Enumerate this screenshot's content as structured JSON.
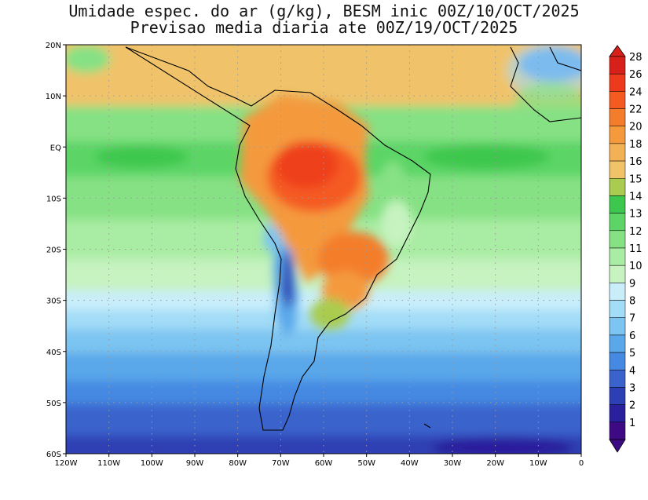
{
  "title_line1": "Umidade espec. do ar (g/kg), BESM inic 00Z/10/OCT/2025",
  "title_line2": "Previsao media diaria ate 00Z/19/OCT/2025",
  "map": {
    "lon_range": [
      -120,
      0
    ],
    "lat_range": [
      -60,
      20
    ],
    "lat_ticks": [
      {
        "value": 20,
        "label": "20N"
      },
      {
        "value": 10,
        "label": "10N"
      },
      {
        "value": 0,
        "label": "EQ"
      },
      {
        "value": -10,
        "label": "10S"
      },
      {
        "value": -20,
        "label": "20S"
      },
      {
        "value": -30,
        "label": "30S"
      },
      {
        "value": -40,
        "label": "40S"
      },
      {
        "value": -50,
        "label": "50S"
      },
      {
        "value": -60,
        "label": "60S"
      }
    ],
    "lon_ticks": [
      {
        "value": -120,
        "label": "120W"
      },
      {
        "value": -110,
        "label": "110W"
      },
      {
        "value": -100,
        "label": "100W"
      },
      {
        "value": -90,
        "label": "90W"
      },
      {
        "value": -80,
        "label": "80W"
      },
      {
        "value": -70,
        "label": "70W"
      },
      {
        "value": -60,
        "label": "60W"
      },
      {
        "value": -50,
        "label": "50W"
      },
      {
        "value": -40,
        "label": "40W"
      },
      {
        "value": -30,
        "label": "30W"
      },
      {
        "value": -20,
        "label": "20W"
      },
      {
        "value": -10,
        "label": "10W"
      },
      {
        "value": 0,
        "label": "0"
      }
    ]
  },
  "colorbar": {
    "levels": [
      {
        "label": "28",
        "color": "#d8201a"
      },
      {
        "label": "26",
        "color": "#ee3a1c"
      },
      {
        "label": "24",
        "color": "#f55a20"
      },
      {
        "label": "22",
        "color": "#f47d2c"
      },
      {
        "label": "20",
        "color": "#f49a3c"
      },
      {
        "label": "18",
        "color": "#f3b155"
      },
      {
        "label": "16",
        "color": "#f0c36a"
      },
      {
        "label": "15",
        "color": "#a9cc50"
      },
      {
        "label": "14",
        "color": "#3ec74e"
      },
      {
        "label": "13",
        "color": "#5cd566"
      },
      {
        "label": "12",
        "color": "#86e184"
      },
      {
        "label": "11",
        "color": "#a9eca3"
      },
      {
        "label": "10",
        "color": "#c6f3c0"
      },
      {
        "label": "9",
        "color": "#c9eefa"
      },
      {
        "label": "8",
        "color": "#a2dcf7"
      },
      {
        "label": "7",
        "color": "#7cc4f1"
      },
      {
        "label": "6",
        "color": "#5aa7ea"
      },
      {
        "label": "5",
        "color": "#4589e2"
      },
      {
        "label": "4",
        "color": "#3a63cc"
      },
      {
        "label": "3",
        "color": "#2d3fb4"
      },
      {
        "label": "2",
        "color": "#2a1f9c"
      },
      {
        "label": "1",
        "color": "#3d0a84"
      }
    ]
  },
  "colors": {
    "frame": "#000000",
    "grid": "#9a9a9a",
    "coast": "#000000"
  }
}
